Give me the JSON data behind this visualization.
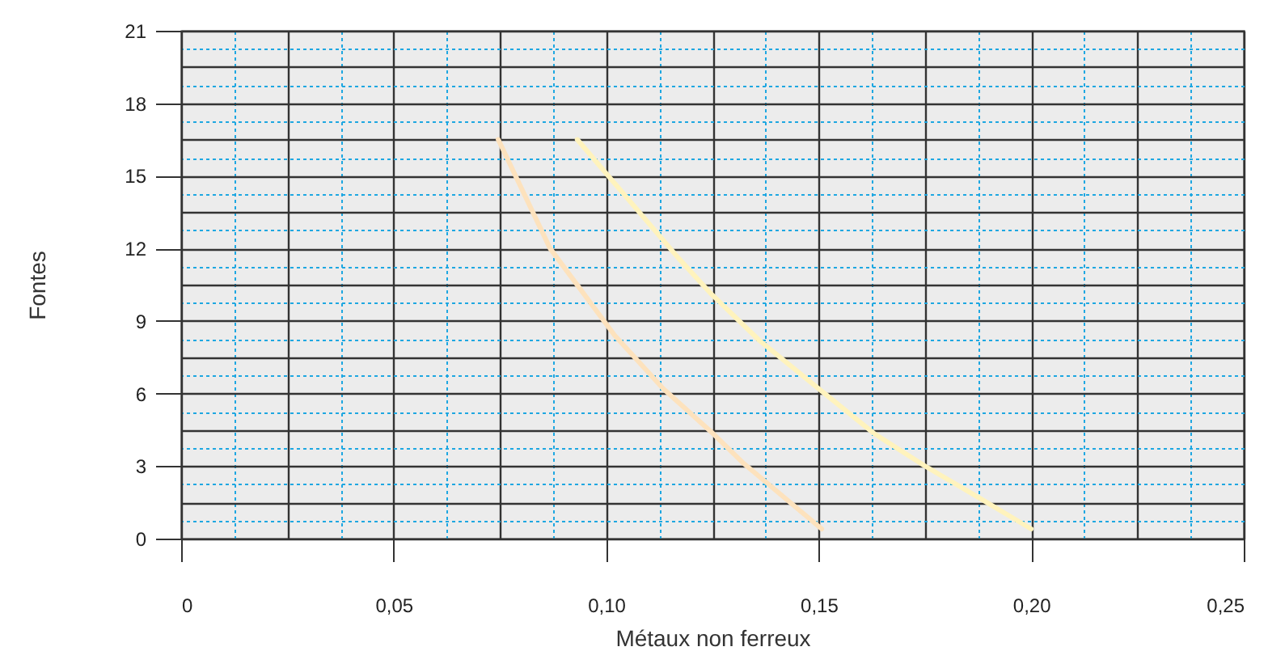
{
  "chart_data": {
    "type": "line",
    "xlabel": "Métaux non ferreux",
    "ylabel": "Fontes",
    "series": [
      {
        "color": "#fde2bd",
        "x": [
          0.0746,
          0.0868,
          0.102,
          0.1134,
          0.1248,
          0.1324,
          0.1507
        ],
        "values": [
          16.5,
          12.0,
          8.4,
          6.2,
          4.4,
          3.1,
          0.4
        ]
      },
      {
        "color": "#fff3bd",
        "x": [
          0.0932,
          0.117,
          0.1248,
          0.136,
          0.1507,
          0.163,
          0.175,
          0.1876,
          0.2
        ],
        "values": [
          16.5,
          11.6,
          10.1,
          8.2,
          6.1,
          4.35,
          3.0,
          1.7,
          0.4
        ]
      }
    ],
    "xlim": [
      0,
      0.25
    ],
    "xticks": [
      0,
      {
        "value": 0.0125,
        "label": null
      },
      {
        "value": 0.025,
        "label": null
      },
      {
        "value": 0.0375,
        "label": null
      },
      {
        "value": 0.05,
        "label": "0,05"
      },
      {
        "value": 0.0625,
        "label": null
      },
      {
        "value": 0.075,
        "label": null
      },
      {
        "value": 0.0875,
        "label": null
      },
      {
        "value": 0.1,
        "label": "0,10"
      },
      {
        "value": 0.1125,
        "label": null
      },
      {
        "value": 0.125,
        "label": null
      },
      {
        "value": 0.1375,
        "label": null
      },
      {
        "value": 0.15,
        "label": "0,15"
      },
      {
        "value": 0.1625,
        "label": null
      },
      {
        "value": 0.175,
        "label": null
      },
      {
        "value": 0.1875,
        "label": null
      },
      {
        "value": 0.2,
        "label": "0,20"
      },
      {
        "value": 0.2125,
        "label": null
      },
      {
        "value": 0.225,
        "label": null
      },
      {
        "value": 0.2375,
        "label": null
      },
      {
        "value": 0.25,
        "label": "0,25"
      }
    ],
    "ylim": [
      0,
      21
    ],
    "yticks": [
      0,
      {
        "value": 0.75,
        "label": null
      },
      {
        "value": 1.5,
        "label": null
      },
      {
        "value": 2.25,
        "label": null
      },
      3,
      {
        "value": 3.75,
        "label": null
      },
      {
        "value": 4.5,
        "label": null
      },
      {
        "value": 5.25,
        "label": null
      },
      6,
      {
        "value": 6.75,
        "label": null
      },
      {
        "value": 7.5,
        "label": null
      },
      {
        "value": 8.25,
        "label": null
      },
      9,
      {
        "value": 9.75,
        "label": null
      },
      {
        "value": 10.5,
        "label": null
      },
      {
        "value": 11.25,
        "label": null
      },
      12,
      {
        "value": 12.75,
        "label": null
      },
      {
        "value": 13.5,
        "label": null
      },
      {
        "value": 14.25,
        "label": null
      },
      15,
      {
        "value": 15.75,
        "label": null
      },
      {
        "value": 16.5,
        "label": null
      },
      {
        "value": 17.25,
        "label": null
      },
      18,
      {
        "value": 18.75,
        "label": null
      },
      {
        "value": 19.5,
        "label": null
      },
      {
        "value": 20.25,
        "label": null
      },
      21
    ],
    "grid": true,
    "marker": "none",
    "line_style": "solid"
  }
}
